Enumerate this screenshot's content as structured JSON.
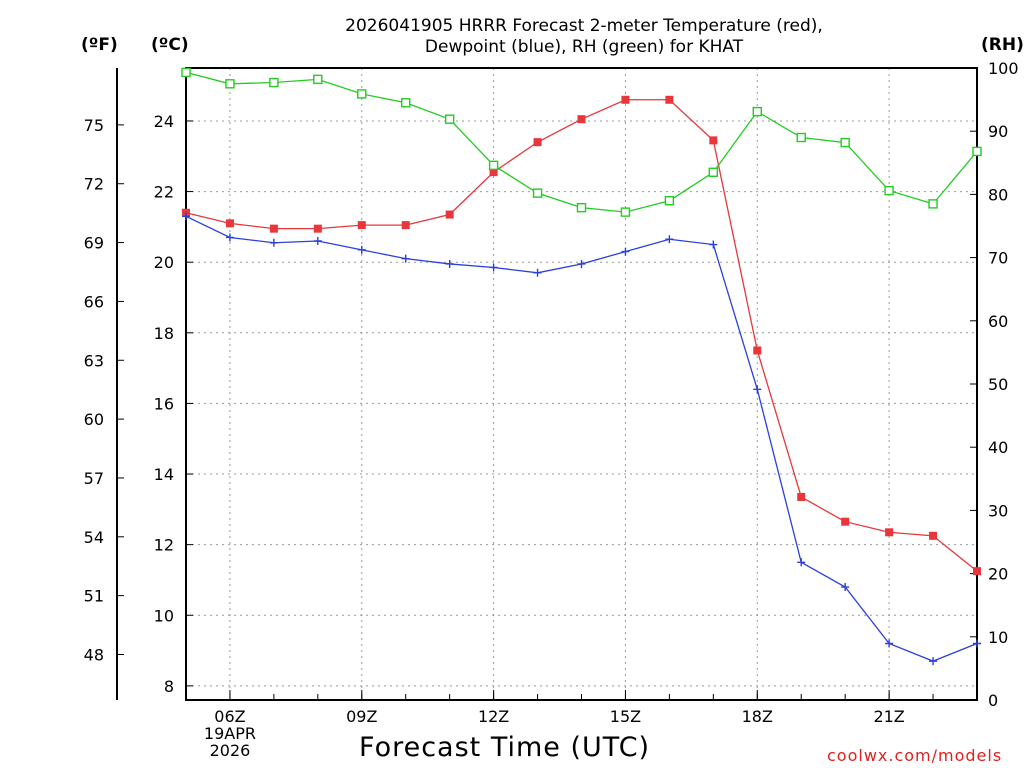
{
  "title_line1": "2026041905 HRRR Forecast 2-meter Temperature (red),",
  "title_line2": "Dewpoint (blue), RH (green) for KHAT",
  "unit_f": "(ºF)",
  "unit_c": "(ºC)",
  "unit_rh": "(RH)",
  "x_axis_label": "Forecast Time (UTC)",
  "credit": "coolwx.com/models",
  "colors": {
    "temperature": "#e8363a",
    "dewpoint": "#2a3fe0",
    "rh": "#22cc22",
    "grid": "#999999",
    "credit": "#e02020"
  },
  "chart_data": {
    "type": "line",
    "title": "2026041905 HRRR Forecast 2-meter Temperature (red), Dewpoint (blue), RH (green) for KHAT",
    "xlabel": "Forecast Time (UTC)",
    "x_hours": [
      5,
      6,
      7,
      8,
      9,
      10,
      11,
      12,
      13,
      14,
      15,
      16,
      17,
      18,
      19,
      20,
      21,
      22,
      23
    ],
    "xlim": [
      5,
      23
    ],
    "x_ticks": [
      {
        "hour": 6,
        "lines": [
          "06Z",
          "19APR",
          "2026"
        ]
      },
      {
        "hour": 9,
        "lines": [
          "09Z"
        ]
      },
      {
        "hour": 12,
        "lines": [
          "12Z"
        ]
      },
      {
        "hour": 15,
        "lines": [
          "15Z"
        ]
      },
      {
        "hour": 18,
        "lines": [
          "18Z"
        ]
      },
      {
        "hour": 21,
        "lines": [
          "21Z"
        ]
      }
    ],
    "left_axis_c": {
      "label": "(ºC)",
      "range": [
        7.6,
        25.5
      ],
      "ticks": [
        "8",
        "10",
        "12",
        "14",
        "16",
        "18",
        "20",
        "22",
        "24"
      ]
    },
    "far_left_axis_f": {
      "label": "(ºF)",
      "ticks": [
        "48",
        "51",
        "54",
        "57",
        "60",
        "63",
        "66",
        "69",
        "72",
        "75"
      ]
    },
    "right_axis_rh": {
      "label": "(RH)",
      "range": [
        0,
        100
      ],
      "ticks": [
        "0",
        "10",
        "20",
        "30",
        "40",
        "50",
        "60",
        "70",
        "80",
        "90",
        "100"
      ]
    },
    "series": [
      {
        "name": "Temperature",
        "axis": "c",
        "color": "#e8363a",
        "marker": "filled-square",
        "values": [
          21.4,
          21.1,
          20.95,
          20.95,
          21.05,
          21.05,
          21.35,
          22.55,
          23.4,
          24.05,
          24.6,
          24.6,
          23.45,
          17.5,
          13.35,
          12.65,
          12.35,
          12.25,
          11.25
        ]
      },
      {
        "name": "Dewpoint",
        "axis": "c",
        "color": "#2a3fe0",
        "marker": "plus",
        "values": [
          21.3,
          20.7,
          20.55,
          20.6,
          20.35,
          20.1,
          19.95,
          19.85,
          19.7,
          19.95,
          20.3,
          20.65,
          20.5,
          16.4,
          11.5,
          10.8,
          9.2,
          8.7,
          9.2
        ]
      },
      {
        "name": "RH",
        "axis": "rh",
        "color": "#22cc22",
        "marker": "open-square",
        "values": [
          99.3,
          97.5,
          97.7,
          98.2,
          95.9,
          94.5,
          91.9,
          84.6,
          80.2,
          77.9,
          77.2,
          79.0,
          83.5,
          93.1,
          89.0,
          88.2,
          80.6,
          78.5,
          86.8
        ]
      }
    ]
  }
}
